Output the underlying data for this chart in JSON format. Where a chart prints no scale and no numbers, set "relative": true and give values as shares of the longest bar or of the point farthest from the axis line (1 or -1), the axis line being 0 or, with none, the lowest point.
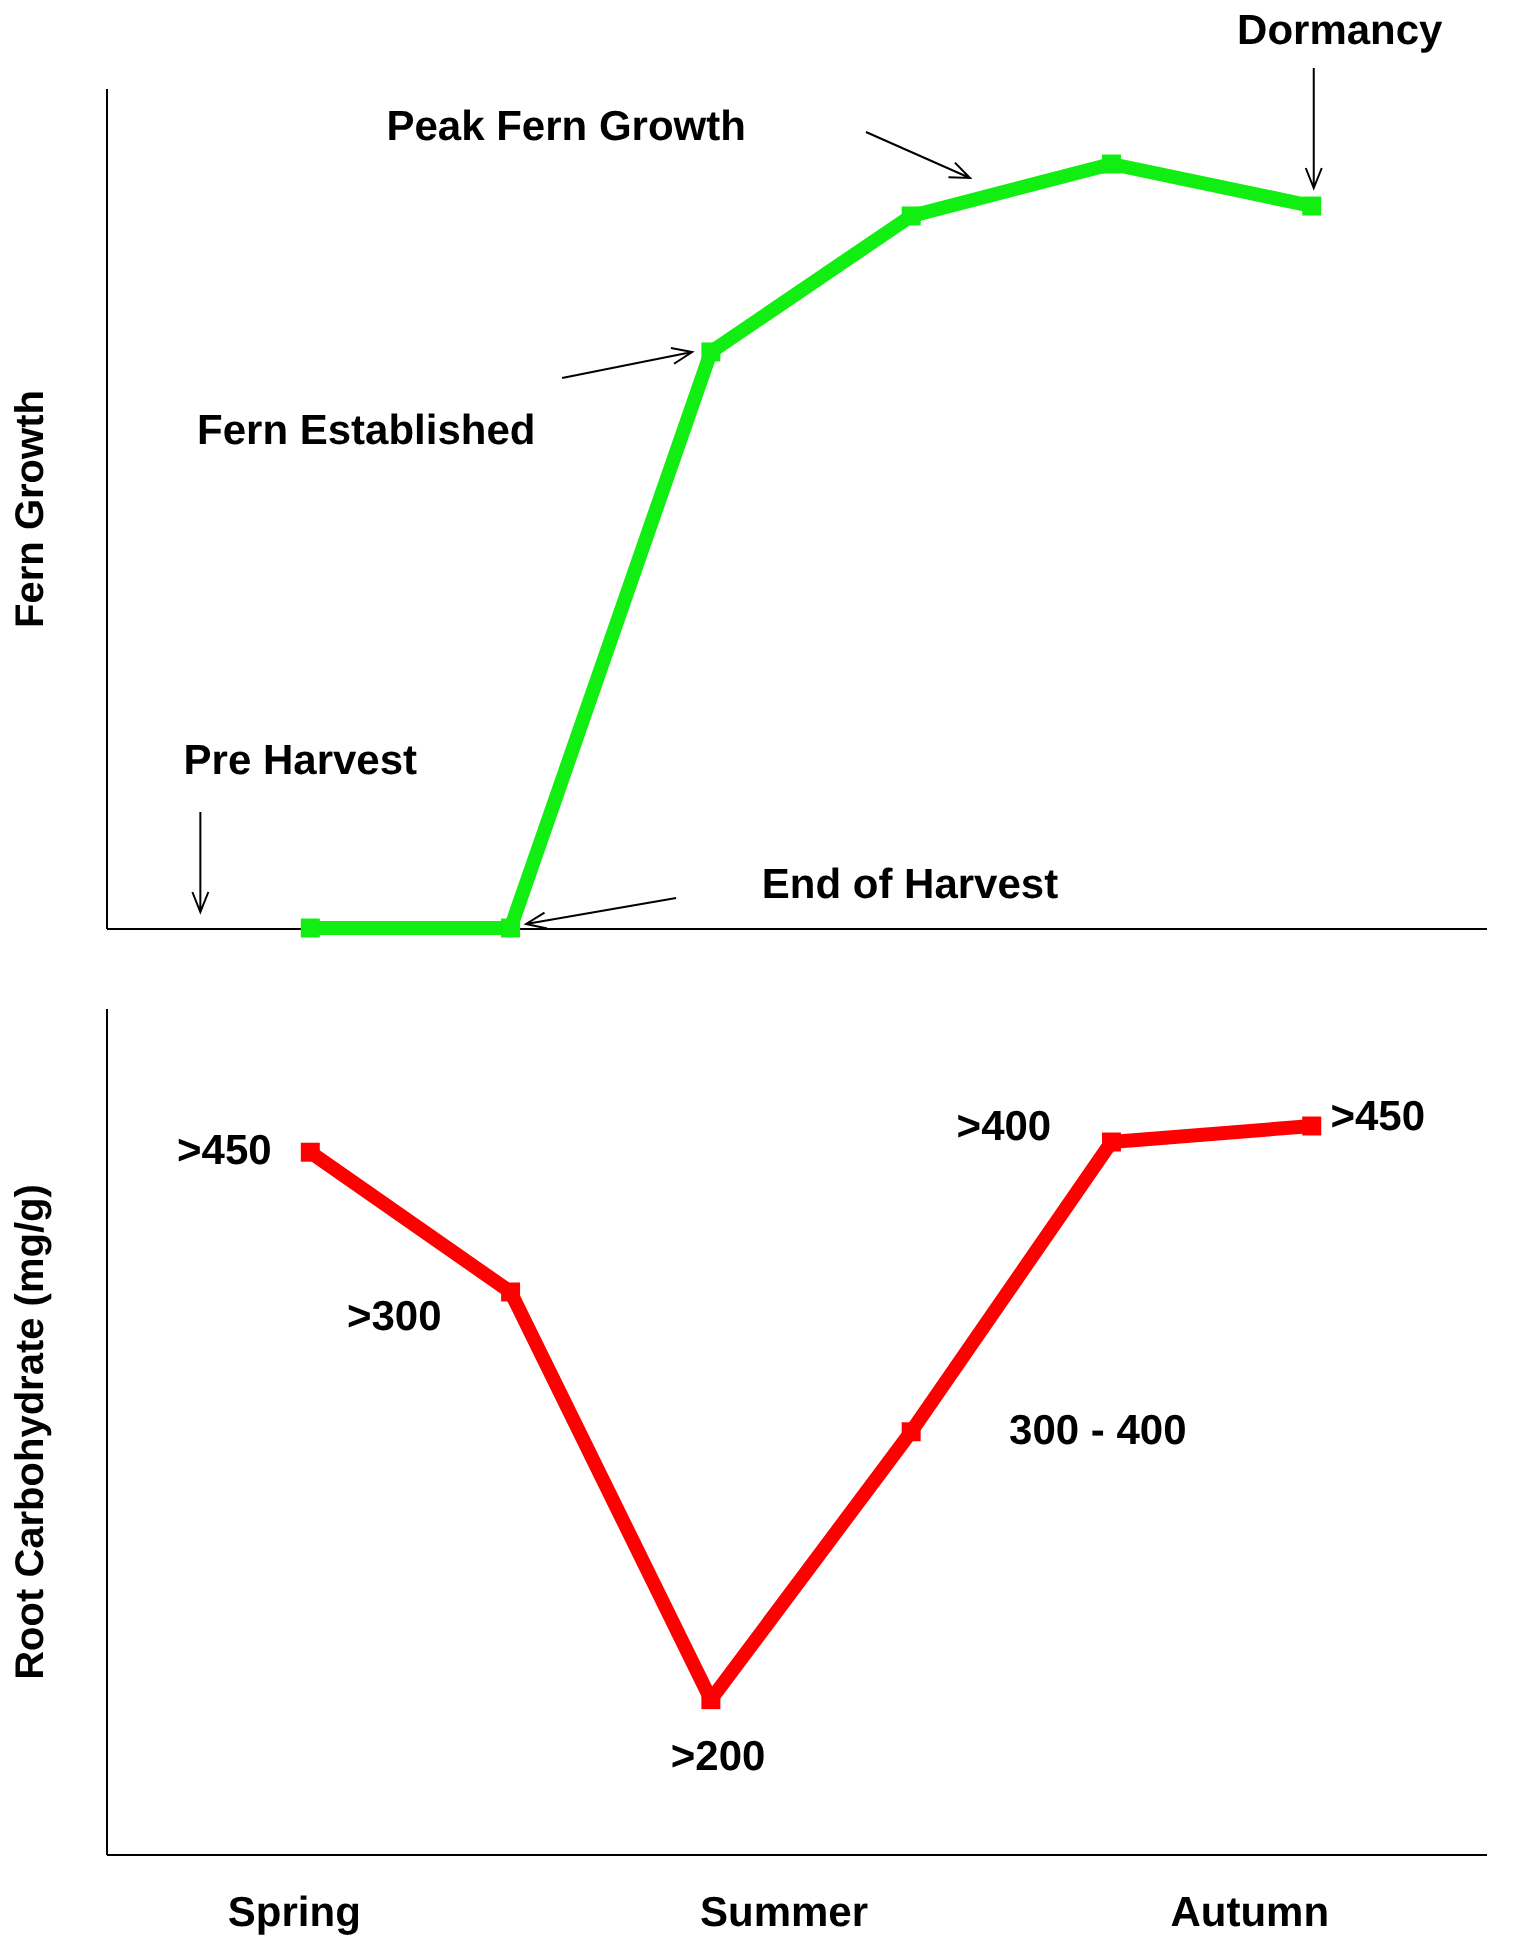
{
  "chart_data": [
    {
      "type": "line",
      "ylabel": "Fern Growth",
      "relative": true,
      "marker": "square",
      "categories": [
        null,
        null,
        null,
        null,
        null,
        null
      ],
      "series": [
        {
          "color": "#11ee11",
          "values": [
            0,
            0,
            0.754,
            0.932,
            1,
            0.945
          ]
        }
      ],
      "annotations": [
        "Pre Harvest",
        "End of Harvest",
        "Fern Established",
        "Peak Fern Growth",
        "Dormancy"
      ]
    },
    {
      "type": "line",
      "ylabel": "Root Carbohydrate (mg/g)",
      "relative": true,
      "marker": "square",
      "categories": [
        null,
        null,
        null,
        null,
        null,
        null
      ],
      "series": [
        {
          "color": "#ff0000",
          "values": [
            0.964,
            0.772,
            0.212,
            0.58,
            0.978,
            1
          ]
        }
      ],
      "annotations": [
        "Spring",
        "Summer",
        "Autumn",
        ">450",
        ">300",
        ">200",
        "300 - 400",
        ">400",
        ">450"
      ]
    }
  ]
}
